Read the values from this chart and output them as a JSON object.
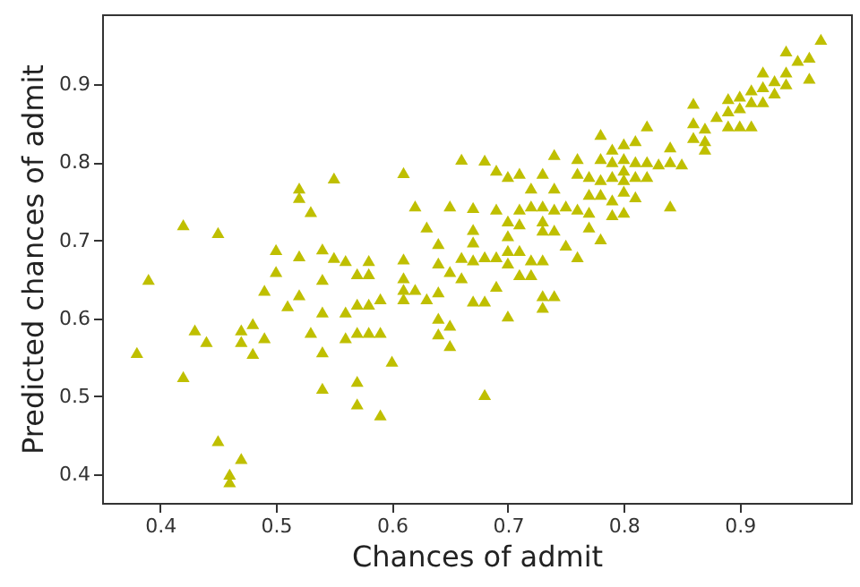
{
  "chart_data": {
    "type": "scatter",
    "xlabel": "Chances of admit",
    "ylabel": "Predicted chances of admit",
    "xlim": [
      0.35,
      0.996
    ],
    "ylim": [
      0.363,
      0.99
    ],
    "xticks": [
      0.4,
      0.5,
      0.6,
      0.7,
      0.8,
      0.9
    ],
    "yticks": [
      0.4,
      0.5,
      0.6,
      0.7,
      0.8,
      0.9
    ],
    "marker": "triangle",
    "grid": false,
    "series": [
      {
        "color": "#bfbf00",
        "x": [
          0.38,
          0.39,
          0.42,
          0.42,
          0.43,
          0.44,
          0.45,
          0.45,
          0.46,
          0.46,
          0.47,
          0.47,
          0.47,
          0.48,
          0.48,
          0.49,
          0.49,
          0.5,
          0.5,
          0.51,
          0.52,
          0.52,
          0.52,
          0.52,
          0.53,
          0.53,
          0.54,
          0.54,
          0.54,
          0.54,
          0.54,
          0.55,
          0.55,
          0.56,
          0.56,
          0.56,
          0.57,
          0.57,
          0.57,
          0.57,
          0.57,
          0.58,
          0.58,
          0.58,
          0.58,
          0.59,
          0.59,
          0.59,
          0.6,
          0.61,
          0.61,
          0.61,
          0.61,
          0.61,
          0.62,
          0.62,
          0.63,
          0.63,
          0.64,
          0.64,
          0.64,
          0.64,
          0.64,
          0.65,
          0.65,
          0.65,
          0.65,
          0.66,
          0.66,
          0.66,
          0.67,
          0.67,
          0.67,
          0.67,
          0.67,
          0.68,
          0.68,
          0.68,
          0.68,
          0.69,
          0.69,
          0.69,
          0.69,
          0.7,
          0.7,
          0.7,
          0.7,
          0.7,
          0.7,
          0.71,
          0.71,
          0.71,
          0.71,
          0.71,
          0.72,
          0.72,
          0.72,
          0.72,
          0.73,
          0.73,
          0.73,
          0.73,
          0.73,
          0.73,
          0.73,
          0.74,
          0.74,
          0.74,
          0.74,
          0.74,
          0.75,
          0.75,
          0.76,
          0.76,
          0.76,
          0.76,
          0.77,
          0.77,
          0.77,
          0.77,
          0.78,
          0.78,
          0.78,
          0.78,
          0.78,
          0.79,
          0.79,
          0.79,
          0.79,
          0.79,
          0.8,
          0.8,
          0.8,
          0.8,
          0.8,
          0.8,
          0.81,
          0.81,
          0.81,
          0.81,
          0.82,
          0.82,
          0.82,
          0.83,
          0.84,
          0.84,
          0.84,
          0.85,
          0.86,
          0.86,
          0.86,
          0.87,
          0.87,
          0.87,
          0.88,
          0.89,
          0.89,
          0.89,
          0.9,
          0.9,
          0.9,
          0.91,
          0.91,
          0.91,
          0.92,
          0.92,
          0.92,
          0.93,
          0.93,
          0.94,
          0.94,
          0.94,
          0.95,
          0.96,
          0.96,
          0.97
        ],
        "values": [
          0.556,
          0.65,
          0.72,
          0.525,
          0.585,
          0.57,
          0.71,
          0.443,
          0.4,
          0.39,
          0.42,
          0.585,
          0.57,
          0.593,
          0.555,
          0.636,
          0.575,
          0.688,
          0.66,
          0.616,
          0.767,
          0.755,
          0.68,
          0.63,
          0.737,
          0.582,
          0.689,
          0.65,
          0.608,
          0.557,
          0.51,
          0.78,
          0.678,
          0.674,
          0.608,
          0.575,
          0.657,
          0.618,
          0.582,
          0.519,
          0.49,
          0.674,
          0.657,
          0.618,
          0.582,
          0.625,
          0.582,
          0.476,
          0.545,
          0.787,
          0.676,
          0.652,
          0.637,
          0.625,
          0.744,
          0.637,
          0.717,
          0.625,
          0.696,
          0.671,
          0.634,
          0.6,
          0.58,
          0.744,
          0.66,
          0.591,
          0.565,
          0.804,
          0.678,
          0.652,
          0.742,
          0.714,
          0.698,
          0.675,
          0.622,
          0.803,
          0.679,
          0.622,
          0.502,
          0.79,
          0.74,
          0.679,
          0.641,
          0.782,
          0.725,
          0.706,
          0.687,
          0.671,
          0.603,
          0.786,
          0.74,
          0.721,
          0.687,
          0.656,
          0.767,
          0.744,
          0.675,
          0.656,
          0.786,
          0.744,
          0.725,
          0.713,
          0.675,
          0.629,
          0.614,
          0.81,
          0.767,
          0.74,
          0.713,
          0.629,
          0.744,
          0.694,
          0.805,
          0.786,
          0.74,
          0.679,
          0.782,
          0.759,
          0.736,
          0.717,
          0.836,
          0.805,
          0.778,
          0.759,
          0.702,
          0.817,
          0.801,
          0.782,
          0.752,
          0.733,
          0.824,
          0.805,
          0.79,
          0.778,
          0.763,
          0.736,
          0.828,
          0.801,
          0.782,
          0.756,
          0.847,
          0.801,
          0.782,
          0.798,
          0.82,
          0.801,
          0.744,
          0.798,
          0.876,
          0.851,
          0.832,
          0.844,
          0.828,
          0.817,
          0.859,
          0.882,
          0.866,
          0.847,
          0.885,
          0.87,
          0.847,
          0.893,
          0.878,
          0.847,
          0.916,
          0.897,
          0.878,
          0.905,
          0.889,
          0.943,
          0.916,
          0.901,
          0.931,
          0.935,
          0.908,
          0.958
        ]
      }
    ]
  }
}
